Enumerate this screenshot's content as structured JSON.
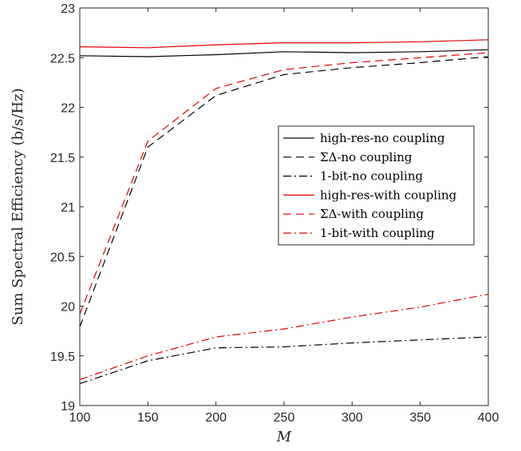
{
  "chart_data": {
    "type": "line",
    "title": "",
    "xlabel": "M",
    "ylabel": "Sum Spectral Efficiency (b/s/Hz)",
    "xlim": [
      100,
      400
    ],
    "ylim": [
      19,
      23
    ],
    "xticks": [
      100,
      150,
      200,
      250,
      300,
      350,
      400
    ],
    "yticks": [
      19,
      19.5,
      20,
      20.5,
      21,
      21.5,
      22,
      22.5,
      23
    ],
    "ytick_labels": [
      "19",
      "19.5",
      "20",
      "20.5",
      "21",
      "21.5",
      "22",
      "22.5",
      "23"
    ],
    "grid": false,
    "legend_position": "center-right",
    "x": [
      100,
      150,
      200,
      250,
      300,
      350,
      400
    ],
    "series": [
      {
        "name": "high-res-no coupling",
        "color": "#000000",
        "dash": "solid",
        "values": [
          22.52,
          22.51,
          22.53,
          22.56,
          22.55,
          22.56,
          22.58
        ]
      },
      {
        "name": "ΣΔ-no coupling",
        "color": "#000000",
        "dash": "dashed",
        "values": [
          19.79,
          21.6,
          22.12,
          22.33,
          22.4,
          22.45,
          22.51
        ]
      },
      {
        "name": "1-bit-no coupling",
        "color": "#000000",
        "dash": "dashdot",
        "values": [
          19.22,
          19.45,
          19.58,
          19.59,
          19.63,
          19.66,
          19.69
        ]
      },
      {
        "name": "high-res-with coupling",
        "color": "#e00000",
        "dash": "solid",
        "values": [
          22.61,
          22.6,
          22.63,
          22.65,
          22.65,
          22.66,
          22.68
        ]
      },
      {
        "name": "ΣΔ-with coupling",
        "color": "#e00000",
        "dash": "dashed",
        "values": [
          19.92,
          21.66,
          22.19,
          22.38,
          22.45,
          22.5,
          22.55
        ]
      },
      {
        "name": "1-bit-with coupling",
        "color": "#e00000",
        "dash": "dashdot",
        "values": [
          19.26,
          19.5,
          19.69,
          19.77,
          19.89,
          19.99,
          20.12
        ]
      }
    ]
  }
}
